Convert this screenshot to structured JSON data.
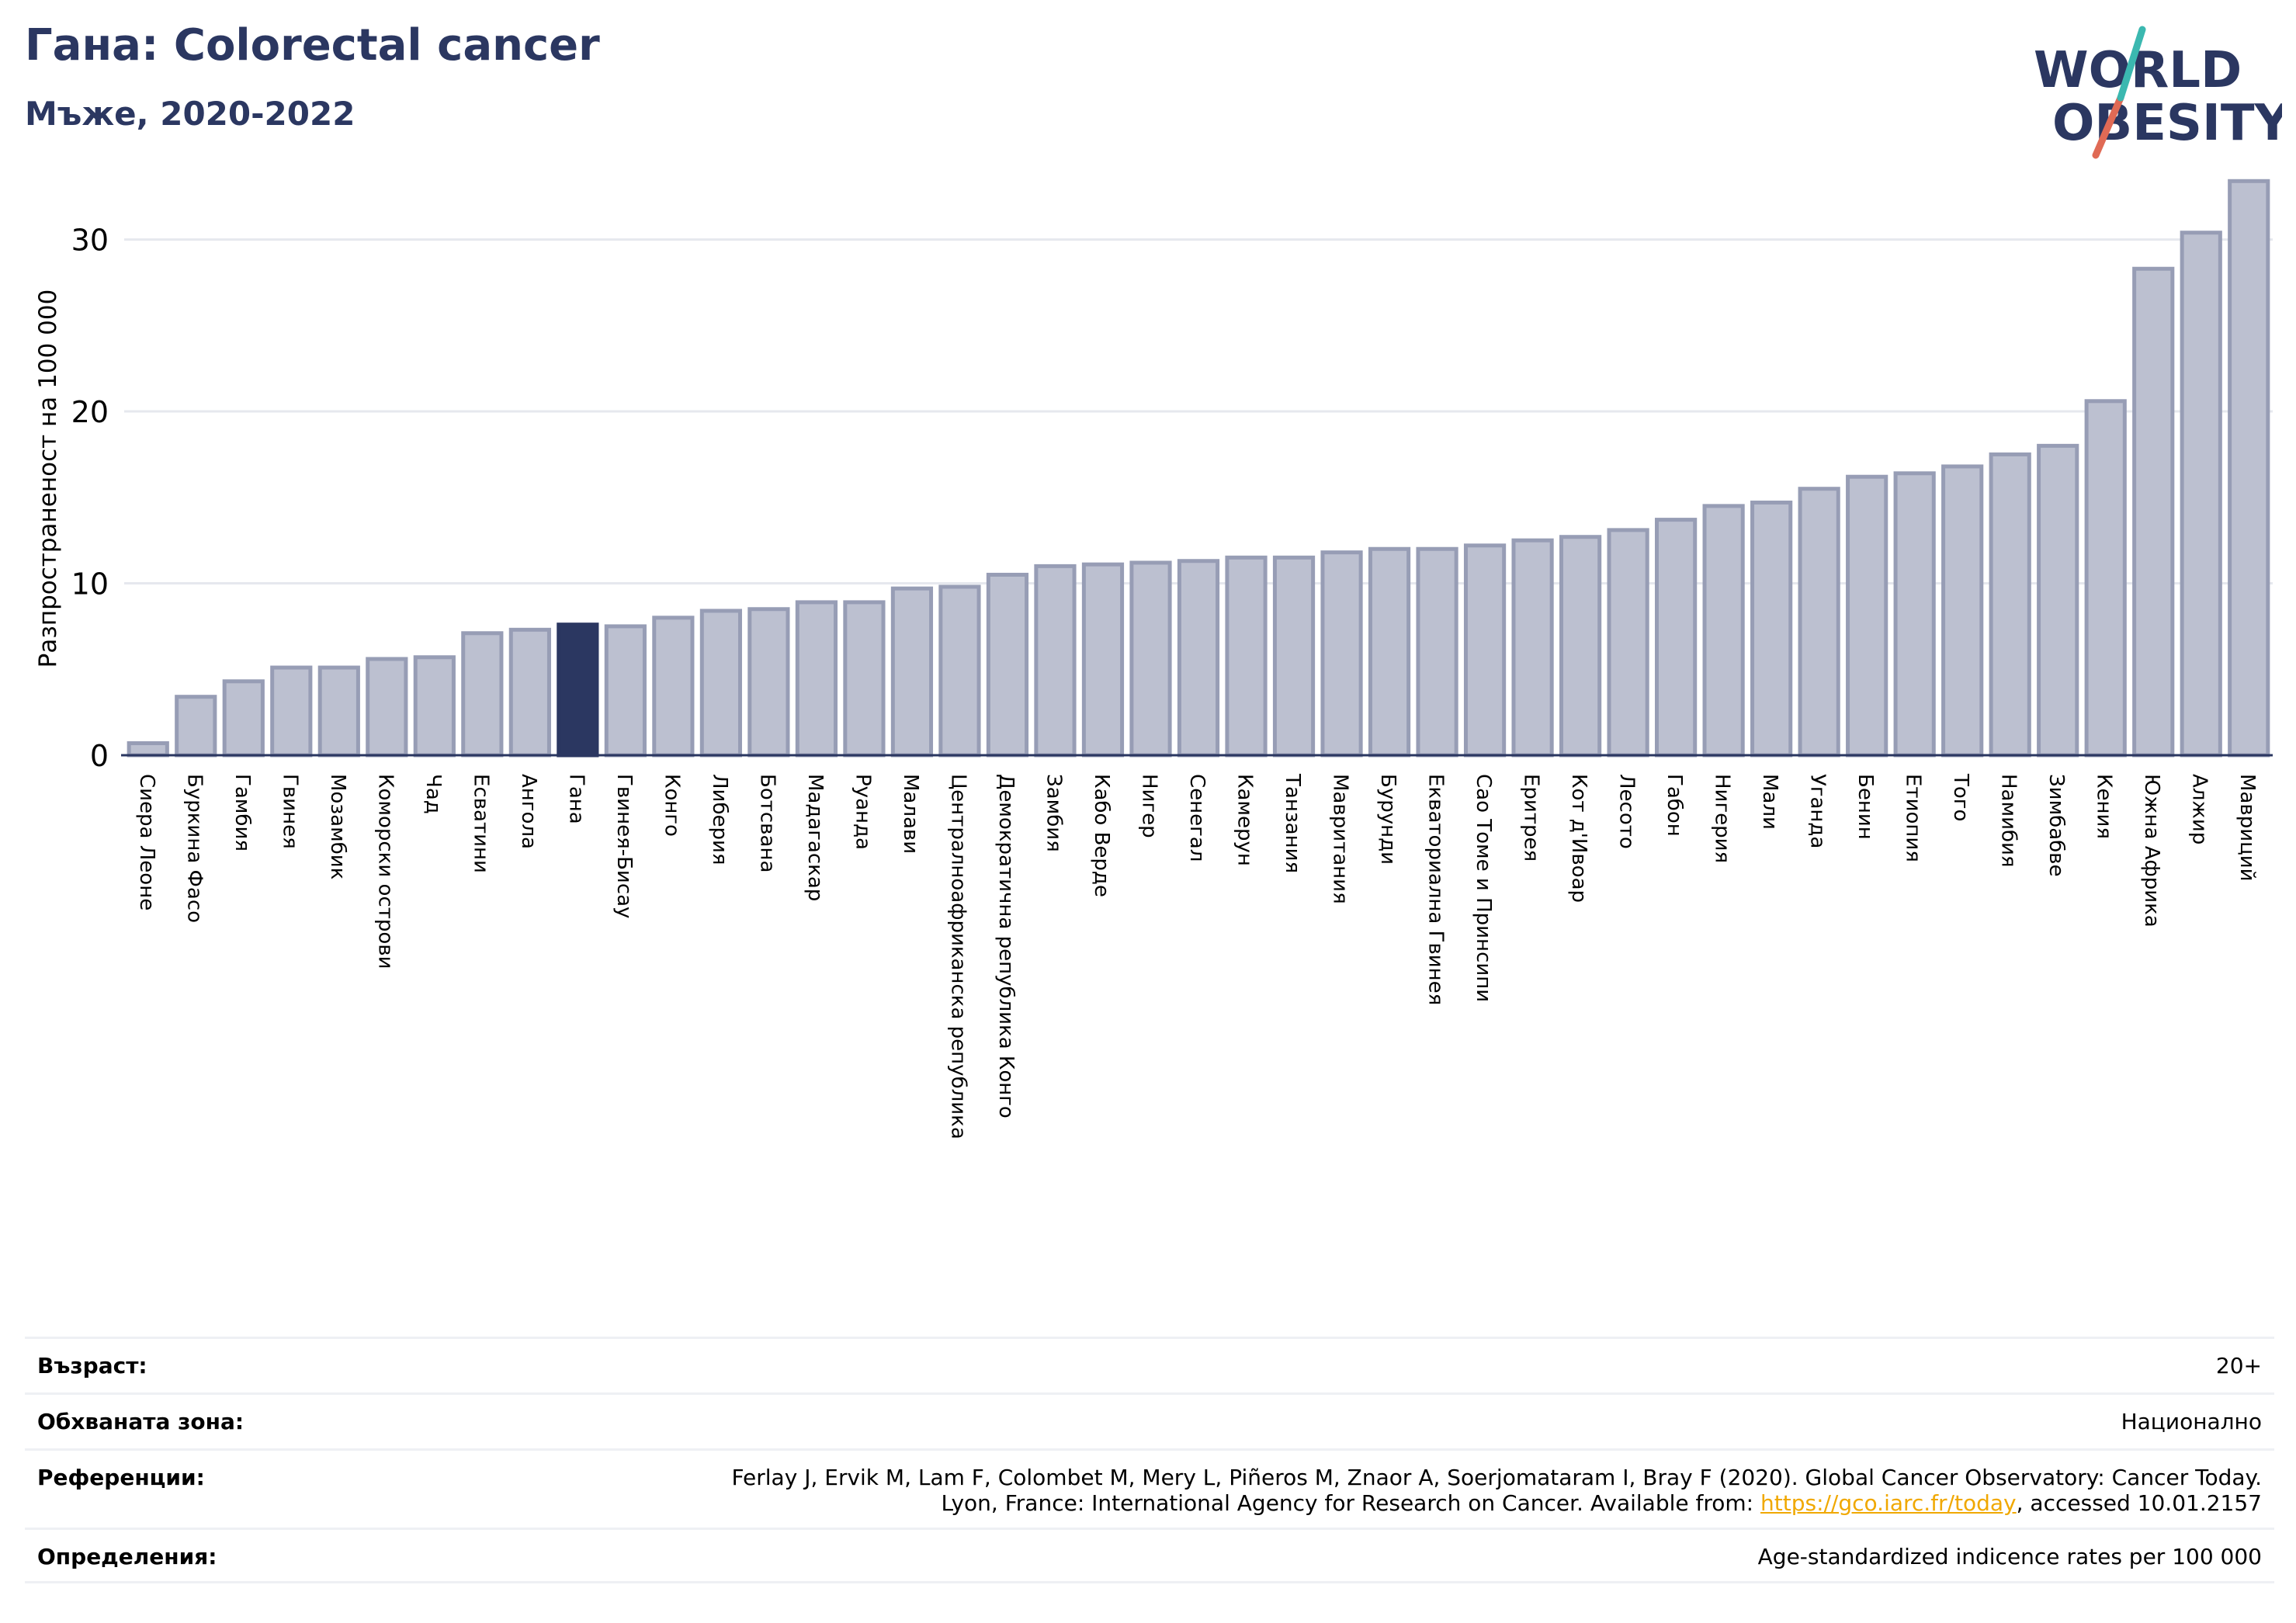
{
  "header": {
    "title": "Гана: Colorectal cancer",
    "subtitle": "Мъже, 2020-2022"
  },
  "logo": {
    "line1": "WORLD",
    "line2": "OBESITY",
    "name": "world-obesity-logo"
  },
  "colors": {
    "brand": "#2b3761",
    "bar": "#bcc0d0",
    "bar_edge": "#979db5",
    "highlight": "#2b3761",
    "link": "#f0a800",
    "grid": "#e6e8ee"
  },
  "chart_data": {
    "type": "bar",
    "ylabel": "Разпространеност  на 100 000",
    "ylim": [
      0,
      34
    ],
    "yticks": [
      0,
      10,
      20,
      30
    ],
    "grid": true,
    "highlight": "Гана",
    "categories": [
      "Сиера Леоне",
      "Буркина Фасо",
      "Гамбия",
      "Гвинея",
      "Мозамбик",
      "Коморски острови",
      "Чад",
      "Есватини",
      "Ангола",
      "Гана",
      "Гвинея-Бисау",
      "Конго",
      "Либерия",
      "Ботсвана",
      "Мадагаскар",
      "Руанда",
      "Малави",
      "Централноафриканска република",
      "Демократична република Конго",
      "Замбия",
      "Кабо Верде",
      "Нигер",
      "Сенегал",
      "Камерун",
      "Танзания",
      "Мавритания",
      "Бурунди",
      "Екваториална Гвинея",
      "Сао Томе и Принсипи",
      "Еритрея",
      "Кот д'Ивоар",
      "Лесото",
      "Габон",
      "Нигерия",
      "Мали",
      "Уганда",
      "Бенин",
      "Етиопия",
      "Того",
      "Намибия",
      "Зимбабве",
      "Кения",
      "Южна Африка",
      "Алжир",
      "Мавриций"
    ],
    "values": [
      0.7,
      3.4,
      4.3,
      5.1,
      5.1,
      5.6,
      5.7,
      7.1,
      7.3,
      7.6,
      7.5,
      8.0,
      8.4,
      8.5,
      8.9,
      8.9,
      9.7,
      9.8,
      10.5,
      11.0,
      11.1,
      11.2,
      11.3,
      11.5,
      11.5,
      11.8,
      12.0,
      12.0,
      12.2,
      12.5,
      12.7,
      13.1,
      13.7,
      14.5,
      14.7,
      15.5,
      16.2,
      16.4,
      16.8,
      17.5,
      18.0,
      20.6,
      28.3,
      30.4,
      33.4
    ]
  },
  "meta": {
    "age_label": "Възраст:",
    "age_value": "20+",
    "area_label": "Обхваната зона:",
    "area_value": "Национално",
    "ref_label": "Референции:",
    "ref_line1": "Ferlay J, Ervik M, Lam F, Colombet M, Mery L, Piñeros M, Znaor A, Soerjomataram I, Bray F (2020). Global Cancer Observatory: Cancer Today.",
    "ref_line2_prefix": "Lyon, France: International Agency for Research on Cancer. Available from: ",
    "ref_link": "https://gco.iarc.fr/today",
    "ref_line2_suffix": ", accessed 10.01.2157",
    "def_label": "Определения:",
    "def_value": "Age-standardized indicence rates per 100 000"
  }
}
